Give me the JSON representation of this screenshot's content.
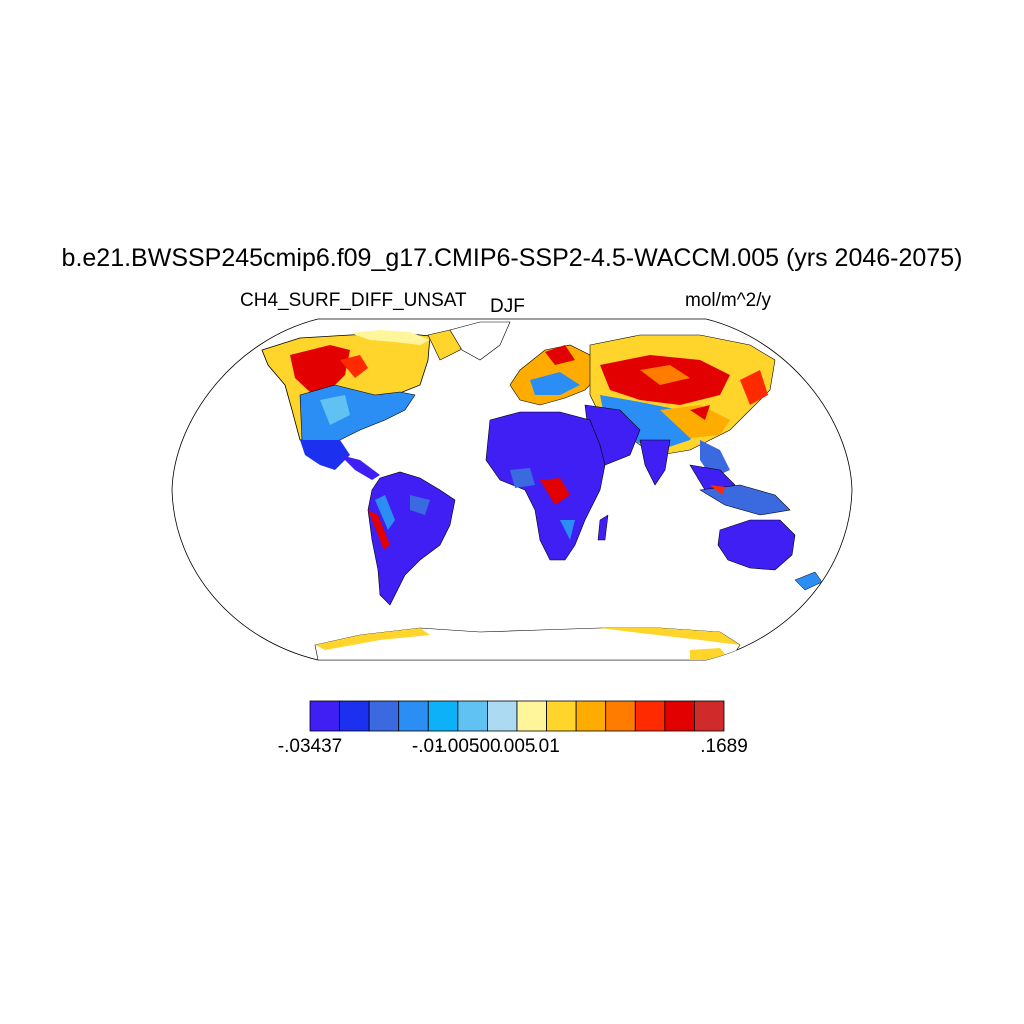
{
  "title": "b.e21.BWSSP245cmip6.f09_g17.CMIP6-SSP2-4.5-WACCM.005 (yrs 2046-2075)",
  "subtitle_left": "CH4_SURF_DIFF_UNSAT",
  "subtitle_center": "DJF",
  "subtitle_right": "mol/m^2/y",
  "colorbar": {
    "colors": [
      "#3f1ff3",
      "#1c31f0",
      "#3b6ae0",
      "#2a8ef5",
      "#0cb1f8",
      "#60c2f2",
      "#abdaf2",
      "#fff59b",
      "#ffd52b",
      "#ffac00",
      "#ff7c00",
      "#ff2a00",
      "#e30000",
      "#d02a2a"
    ],
    "tick_labels": [
      "-.03437",
      "-.01",
      "-.005",
      ".00",
      ".005",
      ".01",
      ".1689"
    ],
    "tick_boundaries": [
      0,
      4,
      5,
      6,
      7,
      8,
      14
    ]
  },
  "map": {
    "projection": "robinson",
    "ocean": "#ffffff",
    "coast": "#000000"
  }
}
